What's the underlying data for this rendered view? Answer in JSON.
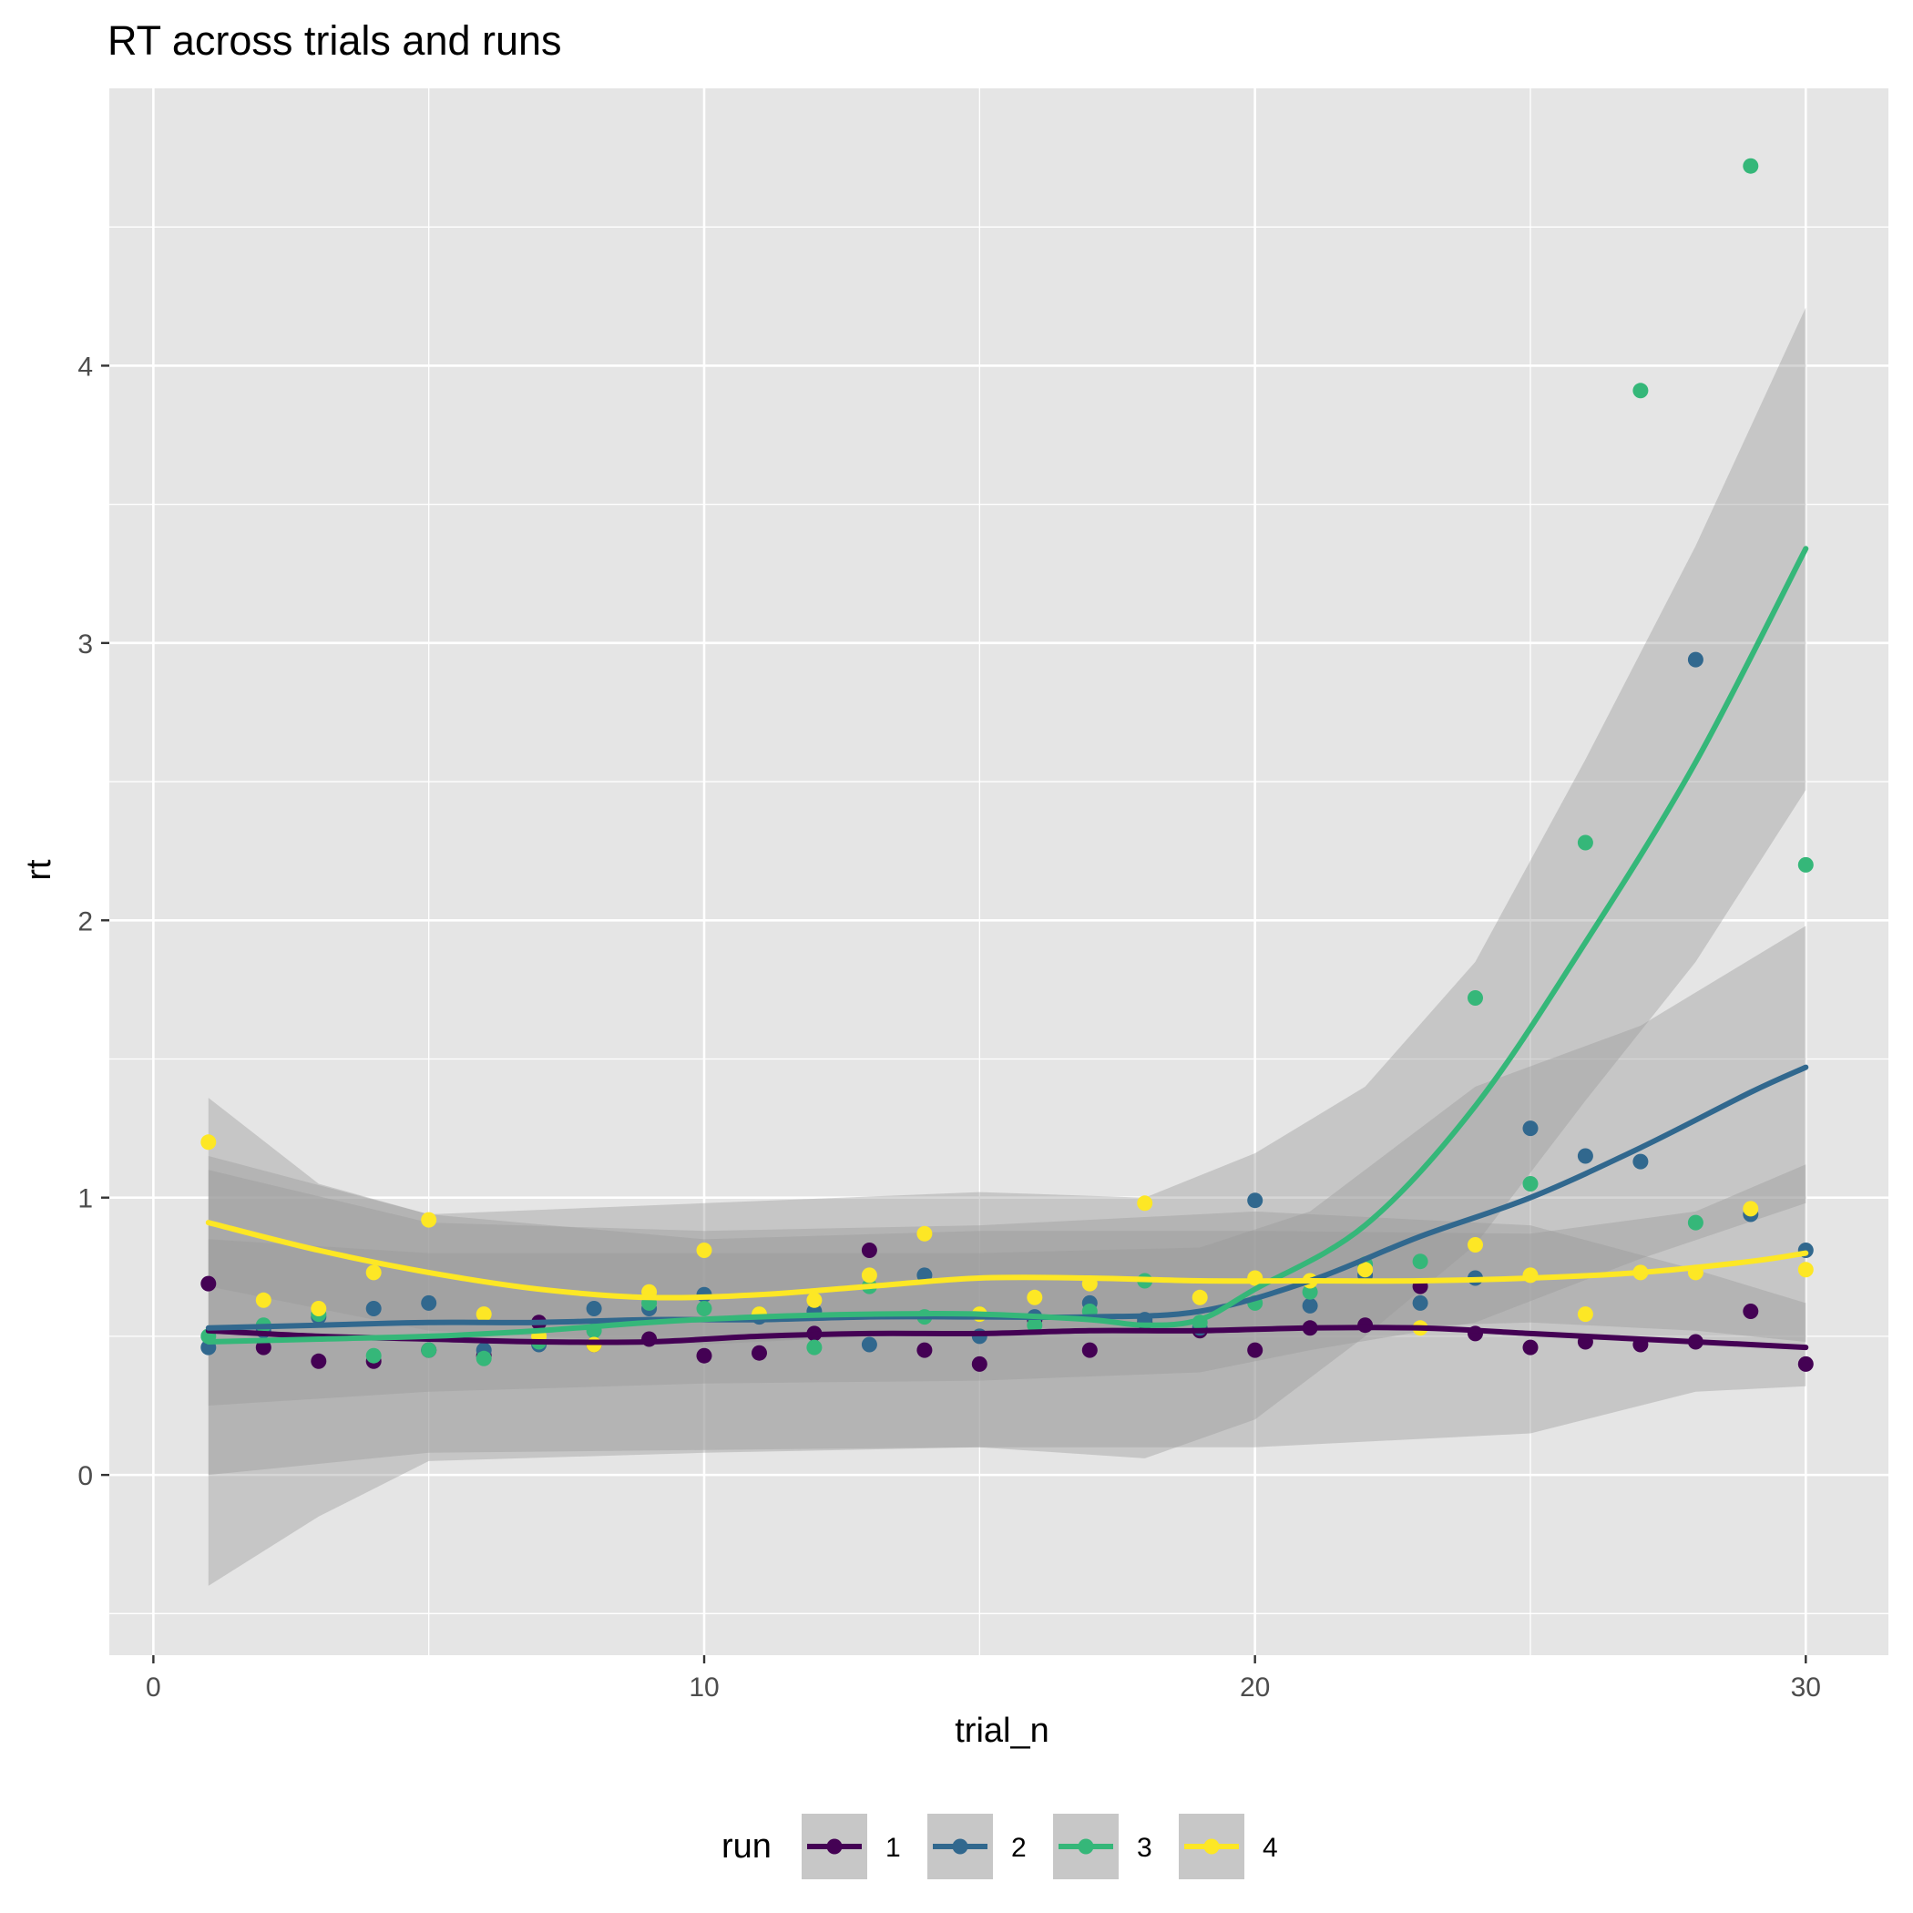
{
  "chart_data": {
    "type": "scatter",
    "title": "RT across trials and runs",
    "xlabel": "trial_n",
    "ylabel": "rt",
    "xlim": [
      -0.8,
      31.5
    ],
    "ylim": [
      -0.65,
      5.0
    ],
    "x_ticks": [
      0,
      10,
      20,
      30
    ],
    "x_tick_labels": [
      "0",
      "10",
      "20",
      "30"
    ],
    "y_ticks": [
      0,
      1,
      2,
      3,
      4
    ],
    "y_tick_labels": [
      "0",
      "1",
      "2",
      "3",
      "4"
    ],
    "grid": true,
    "legend": {
      "title": "run",
      "position": "bottom"
    },
    "panel_background": "#e5e5e5",
    "series": [
      {
        "name": "1",
        "color": "#440154",
        "points": [
          [
            1,
            0.69
          ],
          [
            2,
            0.46
          ],
          [
            3,
            0.41
          ],
          [
            4,
            0.41
          ],
          [
            5,
            0.45
          ],
          [
            6,
            0.43
          ],
          [
            7,
            0.55
          ],
          [
            8,
            0.47
          ],
          [
            9,
            0.49
          ],
          [
            10,
            0.43
          ],
          [
            11,
            0.44
          ],
          [
            12,
            0.51
          ],
          [
            13,
            0.81
          ],
          [
            14,
            0.45
          ],
          [
            15,
            0.4
          ],
          [
            16,
            0.56
          ],
          [
            17,
            0.45
          ],
          [
            18,
            0.55
          ],
          [
            19,
            0.52
          ],
          [
            20,
            0.45
          ],
          [
            21,
            0.53
          ],
          [
            22,
            0.54
          ],
          [
            23,
            0.68
          ],
          [
            24,
            0.51
          ],
          [
            25,
            0.46
          ],
          [
            26,
            0.48
          ],
          [
            27,
            0.47
          ],
          [
            28,
            0.48
          ],
          [
            29,
            0.59
          ],
          [
            30,
            0.4
          ]
        ],
        "smooth": [
          [
            1,
            0.52
          ],
          [
            3,
            0.5
          ],
          [
            5,
            0.49
          ],
          [
            7,
            0.48
          ],
          [
            9,
            0.48
          ],
          [
            11,
            0.5
          ],
          [
            13,
            0.51
          ],
          [
            15,
            0.51
          ],
          [
            17,
            0.52
          ],
          [
            19,
            0.52
          ],
          [
            21,
            0.53
          ],
          [
            23,
            0.53
          ],
          [
            25,
            0.51
          ],
          [
            27,
            0.49
          ],
          [
            29,
            0.47
          ],
          [
            30,
            0.46
          ]
        ],
        "band": [
          [
            1,
            0.0,
            1.1
          ],
          [
            5,
            0.08,
            0.91
          ],
          [
            10,
            0.09,
            0.88
          ],
          [
            15,
            0.1,
            0.9
          ],
          [
            20,
            0.1,
            0.95
          ],
          [
            25,
            0.15,
            0.9
          ],
          [
            28,
            0.3,
            0.74
          ],
          [
            30,
            0.32,
            0.62
          ]
        ]
      },
      {
        "name": "2",
        "color": "#31688e",
        "points": [
          [
            1,
            0.46
          ],
          [
            2,
            0.52
          ],
          [
            3,
            0.57
          ],
          [
            4,
            0.6
          ],
          [
            5,
            0.62
          ],
          [
            6,
            0.45
          ],
          [
            7,
            0.47
          ],
          [
            8,
            0.6
          ],
          [
            9,
            0.6
          ],
          [
            10,
            0.65
          ],
          [
            11,
            0.57
          ],
          [
            12,
            0.59
          ],
          [
            13,
            0.47
          ],
          [
            14,
            0.72
          ],
          [
            15,
            0.5
          ],
          [
            16,
            0.57
          ],
          [
            17,
            0.62
          ],
          [
            18,
            0.56
          ],
          [
            19,
            0.53
          ],
          [
            20,
            0.99
          ],
          [
            21,
            0.61
          ],
          [
            22,
            0.72
          ],
          [
            23,
            0.62
          ],
          [
            24,
            0.71
          ],
          [
            25,
            1.25
          ],
          [
            26,
            1.15
          ],
          [
            27,
            1.13
          ],
          [
            28,
            2.94
          ],
          [
            29,
            0.94
          ],
          [
            30,
            0.81
          ]
        ],
        "smooth": [
          [
            1,
            0.53
          ],
          [
            3,
            0.54
          ],
          [
            5,
            0.55
          ],
          [
            7,
            0.55
          ],
          [
            9,
            0.56
          ],
          [
            11,
            0.56
          ],
          [
            13,
            0.57
          ],
          [
            15,
            0.57
          ],
          [
            17,
            0.57
          ],
          [
            19,
            0.59
          ],
          [
            21,
            0.7
          ],
          [
            23,
            0.86
          ],
          [
            25,
            1.0
          ],
          [
            27,
            1.18
          ],
          [
            29,
            1.38
          ],
          [
            30,
            1.47
          ]
        ],
        "band": [
          [
            1,
            0.25,
            0.85
          ],
          [
            5,
            0.3,
            0.8
          ],
          [
            10,
            0.33,
            0.8
          ],
          [
            15,
            0.34,
            0.8
          ],
          [
            19,
            0.37,
            0.82
          ],
          [
            21,
            0.45,
            0.95
          ],
          [
            24,
            0.55,
            1.4
          ],
          [
            27,
            0.78,
            1.62
          ],
          [
            30,
            0.98,
            1.98
          ]
        ]
      },
      {
        "name": "3",
        "color": "#35b779",
        "points": [
          [
            1,
            0.5
          ],
          [
            2,
            0.54
          ],
          [
            3,
            0.58
          ],
          [
            4,
            0.43
          ],
          [
            5,
            0.45
          ],
          [
            6,
            0.42
          ],
          [
            7,
            0.48
          ],
          [
            8,
            0.52
          ],
          [
            9,
            0.62
          ],
          [
            10,
            0.6
          ],
          [
            11,
            0.58
          ],
          [
            12,
            0.46
          ],
          [
            13,
            0.68
          ],
          [
            14,
            0.57
          ],
          [
            15,
            0.58
          ],
          [
            16,
            0.54
          ],
          [
            17,
            0.59
          ],
          [
            18,
            0.7
          ],
          [
            19,
            0.55
          ],
          [
            20,
            0.62
          ],
          [
            21,
            0.66
          ],
          [
            22,
            0.76
          ],
          [
            23,
            0.77
          ],
          [
            24,
            1.72
          ],
          [
            25,
            1.05
          ],
          [
            26,
            2.28
          ],
          [
            27,
            3.91
          ],
          [
            28,
            0.91
          ],
          [
            29,
            4.72
          ],
          [
            30,
            2.2
          ]
        ],
        "smooth": [
          [
            1,
            0.48
          ],
          [
            3,
            0.49
          ],
          [
            5,
            0.5
          ],
          [
            7,
            0.52
          ],
          [
            9,
            0.55
          ],
          [
            11,
            0.57
          ],
          [
            13,
            0.58
          ],
          [
            15,
            0.58
          ],
          [
            17,
            0.56
          ],
          [
            18,
            0.54
          ],
          [
            19,
            0.56
          ],
          [
            20,
            0.67
          ],
          [
            22,
            0.9
          ],
          [
            24,
            1.33
          ],
          [
            26,
            1.92
          ],
          [
            28,
            2.57
          ],
          [
            30,
            3.34
          ]
        ],
        "band": [
          [
            1,
            -0.4,
            1.36
          ],
          [
            3,
            -0.15,
            1.05
          ],
          [
            5,
            0.05,
            0.94
          ],
          [
            10,
            0.08,
            0.98
          ],
          [
            15,
            0.1,
            1.02
          ],
          [
            18,
            0.06,
            1.0
          ],
          [
            20,
            0.2,
            1.16
          ],
          [
            22,
            0.5,
            1.4
          ],
          [
            24,
            0.83,
            1.85
          ],
          [
            26,
            1.35,
            2.58
          ],
          [
            28,
            1.85,
            3.35
          ],
          [
            30,
            2.47,
            4.21
          ]
        ]
      },
      {
        "name": "4",
        "color": "#fde725",
        "points": [
          [
            1,
            1.2
          ],
          [
            2,
            0.63
          ],
          [
            3,
            0.6
          ],
          [
            4,
            0.73
          ],
          [
            5,
            0.92
          ],
          [
            6,
            0.58
          ],
          [
            7,
            0.5
          ],
          [
            8,
            0.47
          ],
          [
            9,
            0.66
          ],
          [
            10,
            0.81
          ],
          [
            11,
            0.58
          ],
          [
            12,
            0.63
          ],
          [
            13,
            0.72
          ],
          [
            14,
            0.87
          ],
          [
            15,
            0.58
          ],
          [
            16,
            0.64
          ],
          [
            17,
            0.69
          ],
          [
            18,
            0.98
          ],
          [
            19,
            0.64
          ],
          [
            20,
            0.71
          ],
          [
            21,
            0.7
          ],
          [
            22,
            0.74
          ],
          [
            23,
            0.53
          ],
          [
            24,
            0.83
          ],
          [
            25,
            0.72
          ],
          [
            26,
            0.58
          ],
          [
            27,
            0.73
          ],
          [
            28,
            0.73
          ],
          [
            29,
            0.96
          ],
          [
            30,
            0.74
          ]
        ],
        "smooth": [
          [
            1,
            0.91
          ],
          [
            3,
            0.81
          ],
          [
            5,
            0.73
          ],
          [
            7,
            0.67
          ],
          [
            9,
            0.64
          ],
          [
            11,
            0.65
          ],
          [
            13,
            0.68
          ],
          [
            15,
            0.71
          ],
          [
            17,
            0.71
          ],
          [
            19,
            0.7
          ],
          [
            21,
            0.7
          ],
          [
            23,
            0.7
          ],
          [
            25,
            0.71
          ],
          [
            27,
            0.73
          ],
          [
            29,
            0.77
          ],
          [
            30,
            0.8
          ]
        ],
        "band": [
          [
            1,
            0.68,
            1.15
          ],
          [
            5,
            0.52,
            0.94
          ],
          [
            10,
            0.47,
            0.85
          ],
          [
            15,
            0.52,
            0.88
          ],
          [
            20,
            0.52,
            0.88
          ],
          [
            25,
            0.55,
            0.87
          ],
          [
            28,
            0.52,
            0.95
          ],
          [
            30,
            0.48,
            1.12
          ]
        ]
      }
    ]
  }
}
